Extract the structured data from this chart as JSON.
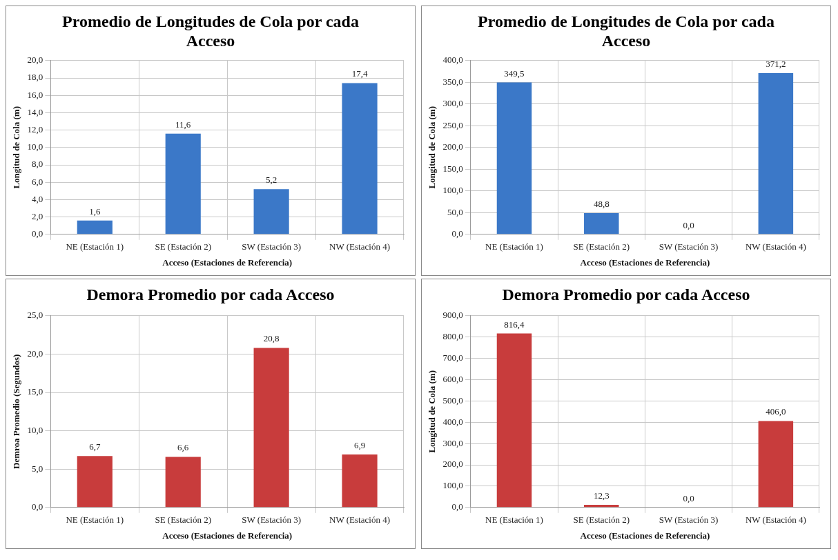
{
  "chart_data": [
    {
      "type": "bar",
      "title": "Promedio de Longitudes de Cola por cada Acceso",
      "xlabel": "Acceso (Estaciones de Referencia)",
      "ylabel": "Longitud de Cola (m)",
      "categories": [
        "NE (Estación 1)",
        "SE (Estación 2)",
        "SW (Estación 3)",
        "NW (Estación 4)"
      ],
      "values": [
        1.6,
        11.6,
        5.2,
        17.4
      ],
      "value_labels": [
        "1,6",
        "11,6",
        "5,2",
        "17,4"
      ],
      "color": "#3b78c8",
      "ylim": [
        0,
        20
      ],
      "yticks": [
        {
          "value": 0,
          "label": "0,0"
        },
        {
          "value": 2,
          "label": "2,0"
        },
        {
          "value": 4,
          "label": "4,0"
        },
        {
          "value": 6,
          "label": "6,0"
        },
        {
          "value": 8,
          "label": "8,0"
        },
        {
          "value": 10,
          "label": "10,0"
        },
        {
          "value": 12,
          "label": "12,0"
        },
        {
          "value": 14,
          "label": "14,0"
        },
        {
          "value": 16,
          "label": "16,0"
        },
        {
          "value": 18,
          "label": "18,0"
        },
        {
          "value": 20,
          "label": "20,0"
        }
      ],
      "grid": true
    },
    {
      "type": "bar",
      "title": "Promedio de Longitudes de Cola por cada Acceso",
      "xlabel": "Acceso (Estaciones de Referencia)",
      "ylabel": "Longitud de Cola (m)",
      "categories": [
        "NE (Estación 1)",
        "SE (Estación 2)",
        "SW (Estación 3)",
        "NW (Estación 4)"
      ],
      "values": [
        349.5,
        48.8,
        0,
        371.2
      ],
      "value_labels": [
        "349,5",
        "48,8",
        "0,0",
        "371,2"
      ],
      "color": "#3b78c8",
      "ylim": [
        0,
        400
      ],
      "yticks": [
        {
          "value": 0,
          "label": "0,0"
        },
        {
          "value": 50,
          "label": "50,0"
        },
        {
          "value": 100,
          "label": "100,0"
        },
        {
          "value": 150,
          "label": "150,0"
        },
        {
          "value": 200,
          "label": "200,0"
        },
        {
          "value": 250,
          "label": "250,0"
        },
        {
          "value": 300,
          "label": "300,0"
        },
        {
          "value": 350,
          "label": "350,0"
        },
        {
          "value": 400,
          "label": "400,0"
        }
      ],
      "grid": true
    },
    {
      "type": "bar",
      "title": "Demora Promedio por cada Acceso",
      "xlabel": "Acceso (Estaciones de Referencia)",
      "ylabel": "Demroa Promedio (Segundos)",
      "categories": [
        "NE (Estación 1)",
        "SE (Estación 2)",
        "SW (Estación 3)",
        "NW (Estación 4)"
      ],
      "values": [
        6.7,
        6.6,
        20.8,
        6.9
      ],
      "value_labels": [
        "6,7",
        "6,6",
        "20,8",
        "6,9"
      ],
      "color": "#c83c3c",
      "ylim": [
        0,
        25
      ],
      "yticks": [
        {
          "value": 0,
          "label": "0,0"
        },
        {
          "value": 5,
          "label": "5,0"
        },
        {
          "value": 10,
          "label": "10,0"
        },
        {
          "value": 15,
          "label": "15,0"
        },
        {
          "value": 20,
          "label": "20,0"
        },
        {
          "value": 25,
          "label": "25,0"
        }
      ],
      "grid": true
    },
    {
      "type": "bar",
      "title": "Demora Promedio por cada Acceso",
      "xlabel": "Acceso (Estaciones de Referencia)",
      "ylabel": "Longitud de Cola (m)",
      "categories": [
        "NE (Estación 1)",
        "SE (Estación 2)",
        "SW (Estación 3)",
        "NW (Estación 4)"
      ],
      "values": [
        816.4,
        12.3,
        0,
        406.0
      ],
      "value_labels": [
        "816,4",
        "12,3",
        "0,0",
        "406,0"
      ],
      "color": "#c83c3c",
      "ylim": [
        0,
        900
      ],
      "yticks": [
        {
          "value": 0,
          "label": "0,0"
        },
        {
          "value": 100,
          "label": "100,0"
        },
        {
          "value": 200,
          "label": "200,0"
        },
        {
          "value": 300,
          "label": "300,0"
        },
        {
          "value": 400,
          "label": "400,0"
        },
        {
          "value": 500,
          "label": "500,0"
        },
        {
          "value": 600,
          "label": "600,0"
        },
        {
          "value": 700,
          "label": "700,0"
        },
        {
          "value": 800,
          "label": "800,0"
        },
        {
          "value": 900,
          "label": "900,0"
        }
      ],
      "grid": true
    }
  ]
}
